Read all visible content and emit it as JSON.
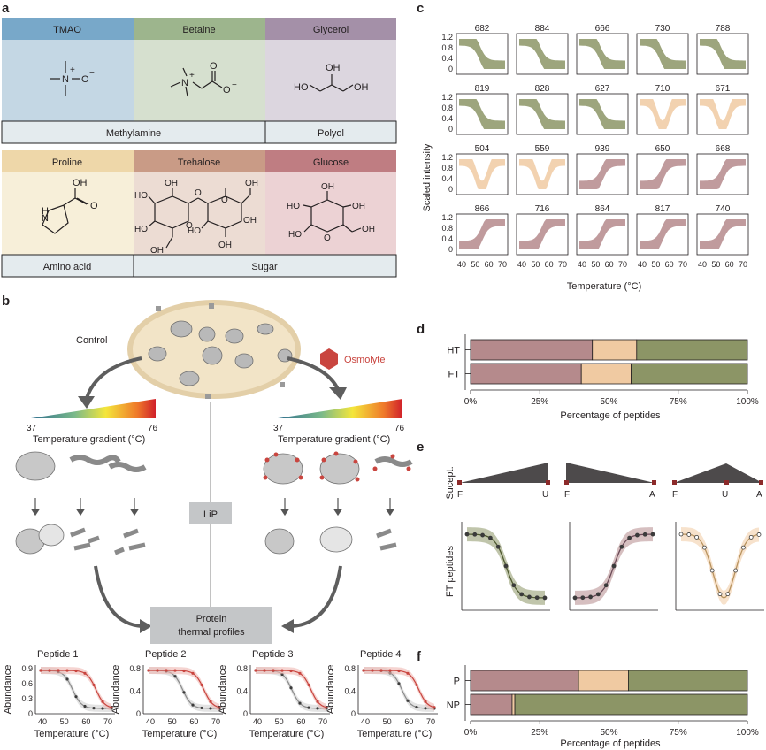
{
  "panel_labels": {
    "a": "a",
    "b": "b",
    "c": "c",
    "d": "d",
    "e": "e",
    "f": "f"
  },
  "colors": {
    "olive": "#8c9566",
    "pink": "#b58a8c",
    "peach": "#f0caa2",
    "tmao": "#78a8c9",
    "betaine": "#9db58d",
    "glycerol": "#a490a8",
    "proline": "#eed7a9",
    "trehalose": "#c99b86",
    "glucose": "#bf7d82",
    "red": "#c9453f",
    "grey": "#8a8a8a"
  },
  "panel_a": {
    "row1": [
      {
        "name": "TMAO"
      },
      {
        "name": "Betaine"
      },
      {
        "name": "Glycerol"
      }
    ],
    "row1_groups": [
      "Methylamine",
      "Polyol"
    ],
    "row2": [
      {
        "name": "Proline"
      },
      {
        "name": "Trehalose"
      },
      {
        "name": "Glucose"
      }
    ],
    "row2_groups": [
      "Amino acid",
      "Sugar"
    ],
    "atoms": {
      "N": "N",
      "O": "O",
      "OH": "OH",
      "HO": "HO",
      "H": "H",
      "plus": "+",
      "minus": "−"
    }
  },
  "panel_b": {
    "control": "Control",
    "osmolyte": "Osmolyte",
    "gradient_label": "Temperature gradient (°C)",
    "gradient_min": "37",
    "gradient_max": "76",
    "lip": "LiP",
    "protein_profiles_l1": "Protein",
    "protein_profiles_l2": "thermal profiles"
  },
  "panel_b_plots": {
    "ylabel": "Abundance",
    "xlabel": "Temperature (°C)",
    "xticks": [
      "40",
      "50",
      "60",
      "70"
    ],
    "peptides": [
      {
        "title": "Peptide 1",
        "yticks": [
          "0.9",
          "0.6",
          "0.3",
          "0"
        ]
      },
      {
        "title": "Peptide 2",
        "yticks": [
          "0.8",
          "0.4",
          "0"
        ]
      },
      {
        "title": "Peptide 3",
        "yticks": [
          "0.8",
          "0.4",
          "0"
        ]
      },
      {
        "title": "Peptide 4",
        "yticks": [
          "0.8",
          "0.4",
          "0"
        ]
      }
    ]
  },
  "panel_c": {
    "ylabel": "Scaled intensity",
    "xlabel": "Temperature (°C)",
    "yticks": [
      "1.2",
      "0.8",
      "0.4",
      "0"
    ],
    "xticks": [
      "40",
      "50",
      "60",
      "70"
    ],
    "cells": [
      {
        "id": "682",
        "shape": "down",
        "color": "olive"
      },
      {
        "id": "884",
        "shape": "down",
        "color": "olive"
      },
      {
        "id": "666",
        "shape": "down",
        "color": "olive"
      },
      {
        "id": "730",
        "shape": "down",
        "color": "olive"
      },
      {
        "id": "788",
        "shape": "down",
        "color": "olive"
      },
      {
        "id": "819",
        "shape": "down",
        "color": "olive"
      },
      {
        "id": "828",
        "shape": "down",
        "color": "olive"
      },
      {
        "id": "627",
        "shape": "down",
        "color": "olive"
      },
      {
        "id": "710",
        "shape": "valley",
        "color": "peach"
      },
      {
        "id": "671",
        "shape": "valley",
        "color": "peach"
      },
      {
        "id": "504",
        "shape": "valley",
        "color": "peach"
      },
      {
        "id": "559",
        "shape": "valley",
        "color": "peach"
      },
      {
        "id": "939",
        "shape": "up",
        "color": "pink"
      },
      {
        "id": "650",
        "shape": "up",
        "color": "pink"
      },
      {
        "id": "668",
        "shape": "up",
        "color": "pink"
      },
      {
        "id": "866",
        "shape": "up",
        "color": "pink"
      },
      {
        "id": "716",
        "shape": "up",
        "color": "pink"
      },
      {
        "id": "864",
        "shape": "up",
        "color": "pink"
      },
      {
        "id": "817",
        "shape": "up",
        "color": "pink"
      },
      {
        "id": "740",
        "shape": "up",
        "color": "pink"
      }
    ]
  },
  "panel_e": {
    "ylabel_top": "Sucept.",
    "ylabel_bottom": "FT peptides",
    "schematics": [
      {
        "labels": [
          "F",
          "U"
        ]
      },
      {
        "labels": [
          "F",
          "A"
        ]
      },
      {
        "labels": [
          "F",
          "U",
          "A"
        ]
      }
    ]
  },
  "chart_data": [
    {
      "type": "bar",
      "title": "",
      "xlabel": "Percentage of peptides",
      "ylabel": "",
      "categories": [
        "HT",
        "FT"
      ],
      "series": [
        {
          "values": [
            44,
            40
          ],
          "color": "pink"
        },
        {
          "values": [
            16,
            18
          ],
          "color": "peach"
        },
        {
          "values": [
            40,
            42
          ],
          "color": "olive"
        }
      ],
      "xticks": [
        "0%",
        "25%",
        "50%",
        "75%",
        "100%"
      ],
      "xlim": [
        0,
        100
      ],
      "stacked": true,
      "orientation": "horizontal"
    },
    {
      "type": "bar",
      "title": "",
      "xlabel": "Percentage of peptides",
      "ylabel": "",
      "categories": [
        "P",
        "NP"
      ],
      "series": [
        {
          "values": [
            39,
            15
          ],
          "color": "pink"
        },
        {
          "values": [
            18,
            1
          ],
          "color": "peach"
        },
        {
          "values": [
            43,
            84
          ],
          "color": "olive"
        }
      ],
      "xticks": [
        "0%",
        "25%",
        "50%",
        "75%",
        "100%"
      ],
      "xlim": [
        0,
        100
      ],
      "stacked": true,
      "orientation": "horizontal"
    }
  ]
}
